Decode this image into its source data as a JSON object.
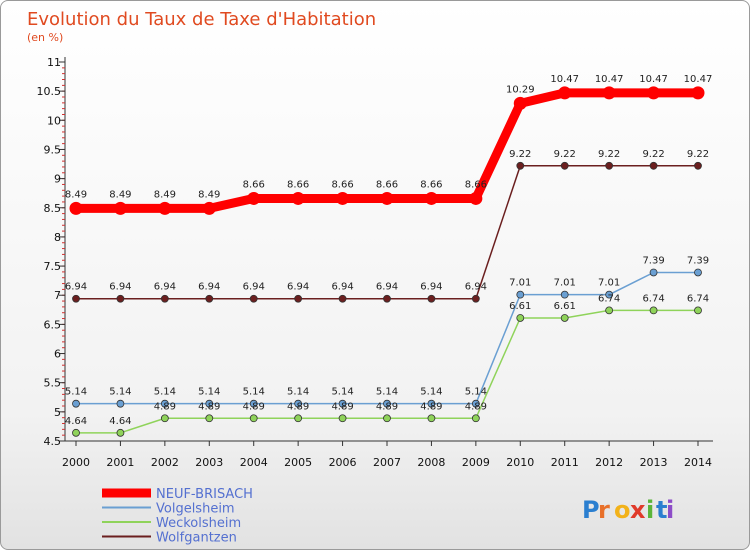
{
  "chart_data": {
    "type": "line",
    "title": "Evolution du Taux de Taxe d'Habitation",
    "subtitle": "(en %)",
    "x": [
      "2000",
      "2001",
      "2002",
      "2003",
      "2004",
      "2005",
      "2006",
      "2007",
      "2008",
      "2009",
      "2010",
      "2011",
      "2012",
      "2013",
      "2014"
    ],
    "ylim": [
      4.5,
      11
    ],
    "yticks": [
      "4.5",
      "5",
      "5.5",
      "6",
      "6.5",
      "7",
      "7.5",
      "8",
      "8.5",
      "9",
      "9.5",
      "10",
      "10.5",
      "11"
    ],
    "series": [
      {
        "name": "Wolfgantzen",
        "color": "#6b1f1f",
        "values": [
          6.94,
          6.94,
          6.94,
          6.94,
          6.94,
          6.94,
          6.94,
          6.94,
          6.94,
          6.94,
          9.22,
          9.22,
          9.22,
          9.22,
          9.22
        ],
        "labels": [
          "6.94",
          "6.94",
          "6.94",
          "6.94",
          "6.94",
          "6.94",
          "6.94",
          "6.94",
          "6.94",
          "6.94",
          "9.22",
          "9.22",
          "9.22",
          "9.22",
          "9.22"
        ]
      },
      {
        "name": "Weckolsheim",
        "color": "#8fd35a",
        "values": [
          4.64,
          4.64,
          4.89,
          4.89,
          4.89,
          4.89,
          4.89,
          4.89,
          4.89,
          4.89,
          6.61,
          6.61,
          6.74,
          6.74,
          6.74
        ],
        "labels": [
          "4.64",
          "4.64",
          "4.89",
          "4.89",
          "4.89",
          "4.89",
          "4.89",
          "4.89",
          "4.89",
          "4.89",
          "6.61",
          "6.61",
          "6.74",
          "6.74",
          "6.74"
        ]
      },
      {
        "name": "Volgelsheim",
        "color": "#6a9fd2",
        "values": [
          5.14,
          5.14,
          5.14,
          5.14,
          5.14,
          5.14,
          5.14,
          5.14,
          5.14,
          5.14,
          7.01,
          7.01,
          7.01,
          7.39,
          7.39
        ],
        "labels": [
          "5.14",
          "5.14",
          "5.14",
          "5.14",
          "5.14",
          "5.14",
          "5.14",
          "5.14",
          "5.14",
          "5.14",
          "7.01",
          "7.01",
          "7.01",
          "7.39",
          "7.39"
        ]
      },
      {
        "name": "NEUF-BRISACH",
        "color": "#ff0000",
        "values": [
          8.49,
          8.49,
          8.49,
          8.49,
          8.66,
          8.66,
          8.66,
          8.66,
          8.66,
          8.66,
          10.29,
          10.47,
          10.47,
          10.47,
          10.47
        ],
        "labels": [
          "8.49",
          "8.49",
          "8.49",
          "8.49",
          "8.66",
          "8.66",
          "8.66",
          "8.66",
          "8.66",
          "8.66",
          "10.29",
          "10.47",
          "10.47",
          "10.47",
          "10.47"
        ]
      }
    ],
    "legend": [
      "NEUF-BRISACH",
      "Volgelsheim",
      "Weckolsheim",
      "Wolfgantzen"
    ],
    "legend_position": "bottom-left",
    "grid": false
  },
  "logo": {
    "letters": [
      "P",
      "r",
      "o",
      "x",
      "i",
      "t",
      "i"
    ],
    "colors": [
      "#2b7fd0",
      "#e8702a",
      "#f2b21a",
      "#e03a2a",
      "#5bb53a",
      "#2b7fd0",
      "#8d4cc8"
    ]
  }
}
